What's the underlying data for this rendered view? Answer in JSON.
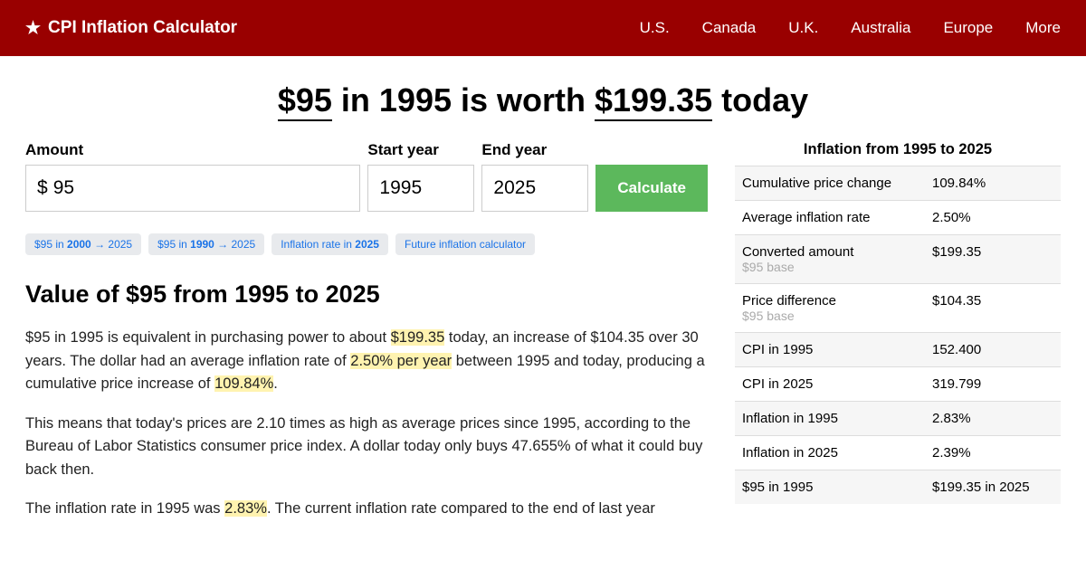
{
  "nav": {
    "brand": "CPI Inflation Calculator",
    "items": [
      "U.S.",
      "Canada",
      "U.K.",
      "Australia",
      "Europe",
      "More"
    ]
  },
  "headline": {
    "amount": "$95",
    "mid": " in 1995 is worth ",
    "result": "$199.35",
    "suffix": " today"
  },
  "form": {
    "amount_label": "Amount",
    "amount_currency": "$",
    "amount_value": "95",
    "start_label": "Start year",
    "start_value": "1995",
    "end_label": "End year",
    "end_value": "2025",
    "calc": "Calculate"
  },
  "chips": [
    {
      "pre": "$95 in ",
      "bold": "2000",
      "post": " → 2025"
    },
    {
      "pre": "$95 in ",
      "bold": "1990",
      "post": " → 2025"
    },
    {
      "pre": "Inflation rate in ",
      "bold": "2025",
      "post": ""
    },
    {
      "pre": "Future inflation calculator",
      "bold": "",
      "post": ""
    }
  ],
  "section_title": "Value of $95 from 1995 to 2025",
  "p1": {
    "a": "$95 in 1995 is equivalent in purchasing power to about ",
    "h1": "$199.35",
    "b": " today, an increase of $104.35 over 30 years. The dollar had an average inflation rate of ",
    "h2": "2.50% per year",
    "c": " between 1995 and today, producing a cumulative price increase of ",
    "h3": "109.84%",
    "d": "."
  },
  "p2": "This means that today's prices are 2.10 times as high as average prices since 1995, according to the Bureau of Labor Statistics consumer price index. A dollar today only buys 47.655% of what it could buy back then.",
  "p3": {
    "a": "The inflation rate in 1995 was ",
    "h1": "2.83%",
    "b": ". The current inflation rate compared to the end of last year"
  },
  "side": {
    "title": "Inflation from 1995 to 2025",
    "rows": [
      {
        "label": "Cumulative price change",
        "sub": "",
        "value": "109.84%"
      },
      {
        "label": "Average inflation rate",
        "sub": "",
        "value": "2.50%"
      },
      {
        "label": "Converted amount",
        "sub": "$95 base",
        "value": "$199.35"
      },
      {
        "label": "Price difference",
        "sub": "$95 base",
        "value": "$104.35"
      },
      {
        "label": "CPI in 1995",
        "sub": "",
        "value": "152.400"
      },
      {
        "label": "CPI in 2025",
        "sub": "",
        "value": "319.799"
      },
      {
        "label": "Inflation in 1995",
        "sub": "",
        "value": "2.83%"
      },
      {
        "label": "Inflation in 2025",
        "sub": "",
        "value": "2.39%"
      },
      {
        "label": "$95 in 1995",
        "sub": "",
        "value": "$199.35 in 2025"
      }
    ]
  }
}
